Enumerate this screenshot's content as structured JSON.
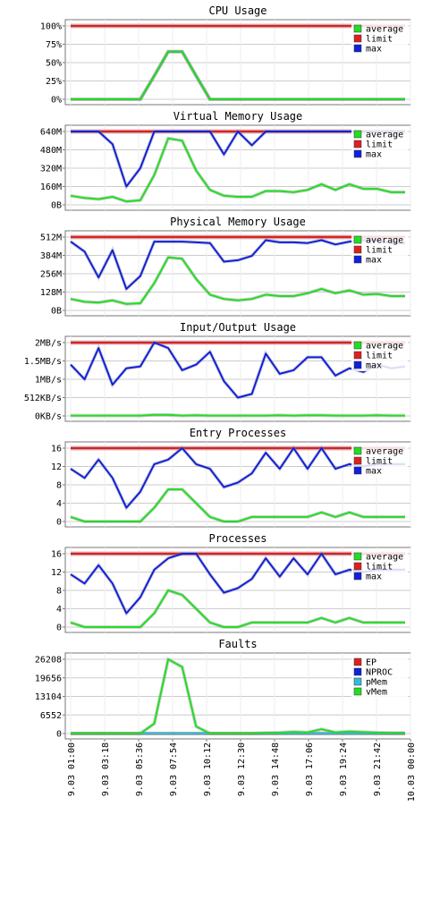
{
  "colors": {
    "average": "#22dd22",
    "limit": "#dd2020",
    "max": "#1020dd",
    "ep": "#dd2020",
    "nproc": "#1020dd",
    "pmem": "#33bbdd",
    "vmem": "#22dd22",
    "grid": "#cccccc",
    "axis": "#777777"
  },
  "x_tick_labels": [
    "9.03 01:00",
    "9.03 03:18",
    "9.03 05:36",
    "9.03 07:54",
    "9.03 10:12",
    "9.03 12:30",
    "9.03 14:48",
    "9.03 17:06",
    "9.03 19:24",
    "9.03 21:42",
    "10.03 00:00"
  ],
  "chart_data": [
    {
      "type": "line",
      "title": "CPU Usage",
      "ylim": [
        0,
        100
      ],
      "y_tick_labels": [
        "100%",
        "75%",
        "50%",
        "25%",
        "0%"
      ],
      "y_tick_values": [
        100,
        75,
        50,
        25,
        0
      ],
      "legend": [
        "average",
        "limit",
        "max"
      ],
      "series": [
        {
          "name": "limit",
          "values": [
            100,
            100,
            100,
            100,
            100,
            100,
            100,
            100,
            100,
            100,
            100,
            100,
            100,
            100,
            100,
            100,
            100,
            100,
            100,
            100,
            100,
            100,
            100,
            100,
            100
          ]
        },
        {
          "name": "max",
          "values": [
            0,
            0,
            0,
            0,
            0,
            0,
            32,
            65,
            65,
            32,
            0,
            0,
            0,
            0,
            0,
            0,
            0,
            0,
            0,
            0,
            0,
            0,
            0,
            0,
            0
          ]
        },
        {
          "name": "average",
          "values": [
            0,
            0,
            0,
            0,
            0,
            0,
            32,
            65,
            65,
            32,
            0,
            0,
            0,
            0,
            0,
            0,
            0,
            0,
            0,
            0,
            0,
            0,
            0,
            0,
            0
          ]
        }
      ]
    },
    {
      "type": "line",
      "title": "Virtual Memory Usage",
      "ylim": [
        0,
        640
      ],
      "y_tick_labels": [
        "640M",
        "480M",
        "320M",
        "160M",
        "0B"
      ],
      "y_tick_values": [
        640,
        480,
        320,
        160,
        0
      ],
      "legend": [
        "average",
        "limit",
        "max"
      ],
      "series": [
        {
          "name": "limit",
          "values": [
            640,
            640,
            640,
            640,
            640,
            640,
            640,
            640,
            640,
            640,
            640,
            640,
            640,
            640,
            640,
            640,
            640,
            640,
            640,
            640,
            640,
            640,
            640,
            640,
            640
          ]
        },
        {
          "name": "max",
          "values": [
            640,
            640,
            640,
            530,
            160,
            320,
            640,
            640,
            640,
            640,
            640,
            440,
            640,
            520,
            640,
            640,
            640,
            640,
            640,
            640,
            640,
            640,
            640,
            640,
            640
          ]
        },
        {
          "name": "average",
          "values": [
            80,
            60,
            50,
            70,
            30,
            40,
            260,
            580,
            560,
            300,
            130,
            80,
            70,
            70,
            120,
            120,
            110,
            130,
            180,
            130,
            180,
            140,
            140,
            110,
            110
          ]
        }
      ]
    },
    {
      "type": "line",
      "title": "Physical Memory Usage",
      "ylim": [
        0,
        512
      ],
      "y_tick_labels": [
        "512M",
        "384M",
        "256M",
        "128M",
        "0B"
      ],
      "y_tick_values": [
        512,
        384,
        256,
        128,
        0
      ],
      "legend": [
        "average",
        "limit",
        "max"
      ],
      "series": [
        {
          "name": "limit",
          "values": [
            512,
            512,
            512,
            512,
            512,
            512,
            512,
            512,
            512,
            512,
            512,
            512,
            512,
            512,
            512,
            512,
            512,
            512,
            512,
            512,
            512,
            512,
            512,
            512,
            512
          ]
        },
        {
          "name": "max",
          "values": [
            480,
            410,
            230,
            420,
            150,
            240,
            480,
            480,
            480,
            475,
            470,
            340,
            350,
            380,
            490,
            475,
            475,
            470,
            490,
            460,
            480,
            490,
            490,
            470,
            470
          ]
        },
        {
          "name": "average",
          "values": [
            80,
            60,
            55,
            70,
            45,
            50,
            190,
            370,
            360,
            220,
            110,
            80,
            70,
            80,
            110,
            100,
            100,
            120,
            150,
            120,
            140,
            110,
            115,
            100,
            100
          ]
        }
      ]
    },
    {
      "type": "line",
      "title": "Input/Output Usage",
      "ylim": [
        0,
        2
      ],
      "y_tick_labels": [
        "2MB/s",
        "1.5MB/s",
        "1MB/s",
        "512KB/s",
        "0KB/s"
      ],
      "y_tick_values": [
        2,
        1.5,
        1,
        0.5,
        0
      ],
      "legend": [
        "average",
        "limit",
        "max"
      ],
      "series": [
        {
          "name": "limit",
          "values": [
            2,
            2,
            2,
            2,
            2,
            2,
            2,
            2,
            2,
            2,
            2,
            2,
            2,
            2,
            2,
            2,
            2,
            2,
            2,
            2,
            2,
            2,
            2,
            2,
            2
          ]
        },
        {
          "name": "max",
          "values": [
            1.4,
            1.0,
            1.85,
            0.85,
            1.3,
            1.35,
            2.0,
            1.85,
            1.25,
            1.4,
            1.75,
            0.95,
            0.5,
            0.6,
            1.7,
            1.15,
            1.25,
            1.6,
            1.6,
            1.1,
            1.3,
            1.2,
            1.4,
            1.3,
            1.35
          ]
        },
        {
          "name": "average",
          "values": [
            0.01,
            0.01,
            0.01,
            0.01,
            0.01,
            0.01,
            0.03,
            0.03,
            0.01,
            0.02,
            0.01,
            0.01,
            0.01,
            0.01,
            0.01,
            0.02,
            0.01,
            0.02,
            0.02,
            0.01,
            0.01,
            0.01,
            0.02,
            0.01,
            0.01
          ]
        }
      ]
    },
    {
      "type": "line",
      "title": "Entry Processes",
      "ylim": [
        0,
        16
      ],
      "y_tick_labels": [
        "16",
        "12",
        "8",
        "4",
        "0"
      ],
      "y_tick_values": [
        16,
        12,
        8,
        4,
        0
      ],
      "legend": [
        "average",
        "limit",
        "max"
      ],
      "series": [
        {
          "name": "limit",
          "values": [
            16,
            16,
            16,
            16,
            16,
            16,
            16,
            16,
            16,
            16,
            16,
            16,
            16,
            16,
            16,
            16,
            16,
            16,
            16,
            16,
            16,
            16,
            16,
            16,
            16
          ]
        },
        {
          "name": "max",
          "values": [
            11.5,
            9.5,
            13.5,
            9.5,
            3,
            6.5,
            12.5,
            13.5,
            16,
            12.5,
            11.5,
            7.5,
            8.5,
            10.5,
            15,
            11.5,
            16,
            11.5,
            16,
            11.5,
            12.5,
            12,
            12.5,
            12.5,
            12.5
          ]
        },
        {
          "name": "average",
          "values": [
            1,
            0,
            0,
            0,
            0,
            0,
            3,
            7,
            7,
            4,
            1,
            0,
            0,
            1,
            1,
            1,
            1,
            1,
            2,
            1,
            2,
            1,
            1,
            1,
            1
          ]
        }
      ]
    },
    {
      "type": "line",
      "title": "Processes",
      "ylim": [
        0,
        16
      ],
      "y_tick_labels": [
        "16",
        "12",
        "8",
        "4",
        "0"
      ],
      "y_tick_values": [
        16,
        12,
        8,
        4,
        0
      ],
      "legend": [
        "average",
        "limit",
        "max"
      ],
      "series": [
        {
          "name": "limit",
          "values": [
            16,
            16,
            16,
            16,
            16,
            16,
            16,
            16,
            16,
            16,
            16,
            16,
            16,
            16,
            16,
            16,
            16,
            16,
            16,
            16,
            16,
            16,
            16,
            16,
            16
          ]
        },
        {
          "name": "max",
          "values": [
            11.5,
            9.5,
            13.5,
            9.5,
            3,
            6.5,
            12.5,
            15,
            16,
            16,
            11.5,
            7.5,
            8.5,
            10.5,
            15,
            11,
            15,
            11.5,
            16,
            11.5,
            12.5,
            12,
            12.5,
            12.5,
            12.5
          ]
        },
        {
          "name": "average",
          "values": [
            1,
            0,
            0,
            0,
            0,
            0,
            3,
            8,
            7,
            4,
            1,
            0,
            0,
            1,
            1,
            1,
            1,
            1,
            2,
            1,
            2,
            1,
            1,
            1,
            1
          ]
        }
      ]
    },
    {
      "type": "line",
      "title": "Faults",
      "ylim": [
        0,
        26208
      ],
      "y_tick_labels": [
        "26208",
        "19656",
        "13104",
        "6552",
        "0"
      ],
      "y_tick_values": [
        26208,
        19656,
        13104,
        6552,
        0
      ],
      "legend": [
        "EP",
        "NPROC",
        "pMem",
        "vMem"
      ],
      "series": [
        {
          "name": "EP",
          "values": [
            0,
            0,
            0,
            0,
            0,
            0,
            0,
            0,
            0,
            0,
            0,
            0,
            0,
            0,
            0,
            0,
            0,
            0,
            0,
            0,
            0,
            0,
            0,
            0,
            0
          ]
        },
        {
          "name": "NPROC",
          "values": [
            0,
            0,
            0,
            0,
            0,
            0,
            0,
            0,
            0,
            0,
            0,
            0,
            0,
            0,
            0,
            0,
            0,
            0,
            0,
            0,
            0,
            0,
            0,
            0,
            0
          ]
        },
        {
          "name": "pMem",
          "values": [
            0,
            0,
            0,
            0,
            0,
            0,
            0,
            0,
            0,
            0,
            0,
            0,
            0,
            0,
            0,
            0,
            0,
            0,
            0,
            0,
            0,
            0,
            0,
            0,
            0
          ]
        },
        {
          "name": "vMem",
          "values": [
            0,
            0,
            0,
            0,
            0,
            0,
            3500,
            26208,
            23500,
            2500,
            0,
            0,
            0,
            0,
            200,
            300,
            600,
            400,
            1500,
            400,
            700,
            500,
            300,
            200,
            200
          ]
        }
      ]
    }
  ]
}
